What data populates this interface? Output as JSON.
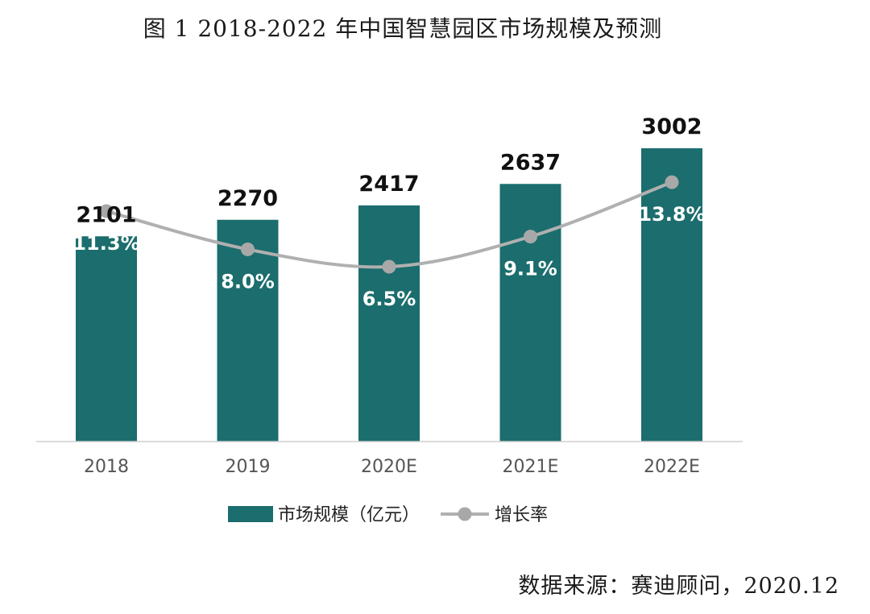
{
  "title": "图 1   2018-2022 年中国智慧园区市场规模及预测",
  "source": "数据来源：赛迪顾问，2020.12",
  "colors": {
    "bar": "#1c6d6d",
    "line": "#b0b0b0",
    "marker": "#a8a8a8"
  },
  "chart_data": {
    "type": "bar",
    "categories": [
      "2018",
      "2019",
      "2020E",
      "2021E",
      "2022E"
    ],
    "series": [
      {
        "name": "市场规模（亿元）",
        "type": "bar",
        "values": [
          2101,
          2270,
          2417,
          2637,
          3002
        ],
        "labels": [
          "2101",
          "2270",
          "2417",
          "2637",
          "3002"
        ]
      },
      {
        "name": "增长率",
        "type": "line",
        "values": [
          11.3,
          8.0,
          6.5,
          9.1,
          13.8
        ],
        "labels": [
          "11.3%",
          "8.0%",
          "6.5%",
          "9.1%",
          "13.8%"
        ]
      }
    ],
    "ylim": [
      0,
      3200
    ],
    "y2lim": [
      -8.6,
      18.4
    ],
    "grid": false,
    "legend": "bottom"
  }
}
